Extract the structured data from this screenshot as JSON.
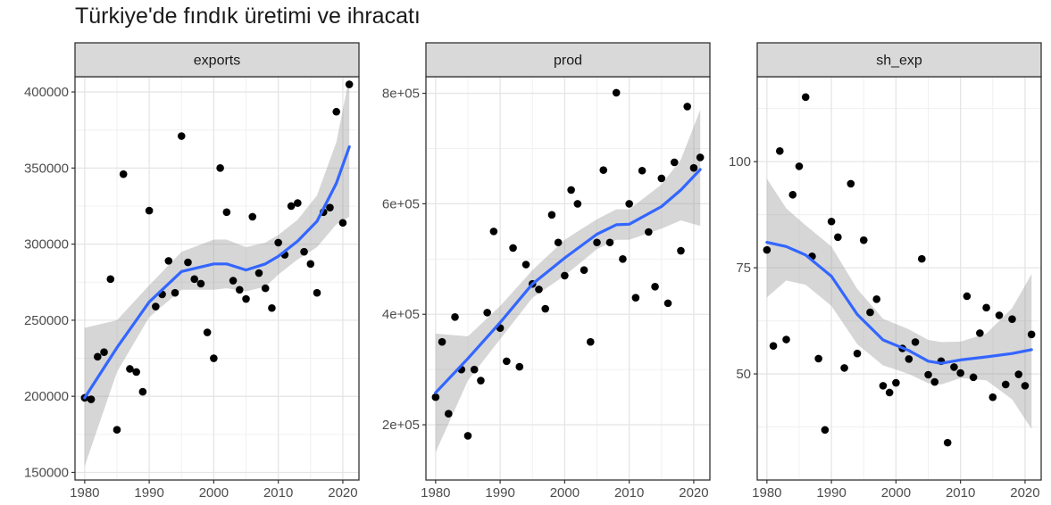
{
  "title": "Türkiye'de fındık üretimi ve ihracatı",
  "chart_data": [
    {
      "type": "scatter",
      "panel": "exports",
      "xlim": [
        1978.5,
        2022.5
      ],
      "ylim": [
        145000,
        410000
      ],
      "x_ticks": [
        1980,
        1990,
        2000,
        2010,
        2020
      ],
      "x_tick_labels": [
        "1980",
        "1990",
        "2000",
        "2010",
        "2020"
      ],
      "y_ticks": [
        150000,
        200000,
        250000,
        300000,
        350000,
        400000
      ],
      "y_tick_labels": [
        "150000",
        "200000",
        "250000",
        "300000",
        "350000",
        "400000"
      ],
      "points": [
        [
          1980,
          199000
        ],
        [
          1981,
          198000
        ],
        [
          1982,
          226000
        ],
        [
          1983,
          229000
        ],
        [
          1984,
          277000
        ],
        [
          1985,
          178000
        ],
        [
          1986,
          346000
        ],
        [
          1987,
          218000
        ],
        [
          1988,
          216000
        ],
        [
          1989,
          203000
        ],
        [
          1990,
          322000
        ],
        [
          1991,
          259000
        ],
        [
          1992,
          267000
        ],
        [
          1993,
          289000
        ],
        [
          1994,
          268000
        ],
        [
          1995,
          371000
        ],
        [
          1996,
          288000
        ],
        [
          1997,
          277000
        ],
        [
          1998,
          274000
        ],
        [
          1999,
          242000
        ],
        [
          2000,
          225000
        ],
        [
          2001,
          350000
        ],
        [
          2002,
          321000
        ],
        [
          2003,
          276000
        ],
        [
          2004,
          270000
        ],
        [
          2005,
          264000
        ],
        [
          2006,
          318000
        ],
        [
          2007,
          281000
        ],
        [
          2008,
          271000
        ],
        [
          2009,
          258000
        ],
        [
          2010,
          301000
        ],
        [
          2011,
          293000
        ],
        [
          2012,
          325000
        ],
        [
          2013,
          327000
        ],
        [
          2014,
          295000
        ],
        [
          2015,
          287000
        ],
        [
          2016,
          268000
        ],
        [
          2017,
          321000
        ],
        [
          2018,
          324000
        ],
        [
          2019,
          387000
        ],
        [
          2020,
          314000
        ],
        [
          2021,
          405000
        ]
      ],
      "smooth": {
        "x": [
          1980,
          1985,
          1990,
          1995,
          2000,
          2002,
          2005,
          2008,
          2010,
          2013,
          2016,
          2019,
          2021
        ],
        "y": [
          199000,
          232000,
          262000,
          282000,
          287000,
          287000,
          283000,
          287000,
          292000,
          302000,
          315000,
          340000,
          364000
        ],
        "lower": [
          154000,
          216000,
          252000,
          270000,
          270000,
          271000,
          269000,
          272000,
          280000,
          290000,
          298000,
          313000,
          318000
        ],
        "upper": [
          245000,
          250000,
          273000,
          295000,
          303000,
          303000,
          298000,
          301000,
          306000,
          316000,
          332000,
          367000,
          410000
        ]
      }
    },
    {
      "type": "scatter",
      "panel": "prod",
      "xlim": [
        1978.5,
        2022.5
      ],
      "ylim": [
        100000,
        830000
      ],
      "x_ticks": [
        1980,
        1990,
        2000,
        2010,
        2020
      ],
      "x_tick_labels": [
        "1980",
        "1990",
        "2000",
        "2010",
        "2020"
      ],
      "y_ticks": [
        200000,
        400000,
        600000,
        800000
      ],
      "y_tick_labels": [
        "2e+05",
        "4e+05",
        "6e+05",
        "8e+05"
      ],
      "points": [
        [
          1980,
          250000
        ],
        [
          1981,
          350000
        ],
        [
          1982,
          220000
        ],
        [
          1983,
          395000
        ],
        [
          1984,
          300000
        ],
        [
          1985,
          180000
        ],
        [
          1986,
          300000
        ],
        [
          1987,
          280000
        ],
        [
          1988,
          403000
        ],
        [
          1989,
          550000
        ],
        [
          1990,
          375000
        ],
        [
          1991,
          315000
        ],
        [
          1992,
          520000
        ],
        [
          1993,
          305000
        ],
        [
          1994,
          490000
        ],
        [
          1995,
          455000
        ],
        [
          1996,
          445000
        ],
        [
          1997,
          410000
        ],
        [
          1998,
          580000
        ],
        [
          1999,
          530000
        ],
        [
          2000,
          470000
        ],
        [
          2001,
          625000
        ],
        [
          2002,
          600000
        ],
        [
          2003,
          480000
        ],
        [
          2004,
          350000
        ],
        [
          2005,
          530000
        ],
        [
          2006,
          661000
        ],
        [
          2007,
          530000
        ],
        [
          2008,
          801000
        ],
        [
          2009,
          500000
        ],
        [
          2010,
          600000
        ],
        [
          2011,
          430000
        ],
        [
          2012,
          660000
        ],
        [
          2013,
          549000
        ],
        [
          2014,
          450000
        ],
        [
          2015,
          646000
        ],
        [
          2016,
          420000
        ],
        [
          2017,
          675000
        ],
        [
          2018,
          515000
        ],
        [
          2019,
          776000
        ],
        [
          2020,
          665000
        ],
        [
          2021,
          684000
        ]
      ],
      "smooth": {
        "x": [
          1980,
          1985,
          1990,
          1995,
          2000,
          2005,
          2008,
          2010,
          2015,
          2018,
          2021
        ],
        "y": [
          258000,
          320000,
          385000,
          455000,
          502000,
          545000,
          562000,
          563000,
          595000,
          625000,
          662000
        ],
        "lower": [
          150000,
          280000,
          355000,
          430000,
          470000,
          518000,
          535000,
          535000,
          555000,
          570000,
          560000
        ],
        "upper": [
          365000,
          360000,
          415000,
          480000,
          535000,
          572000,
          590000,
          590000,
          635000,
          680000,
          770000
        ]
      }
    },
    {
      "type": "scatter",
      "panel": "sh_exp",
      "xlim": [
        1978.5,
        2022.5
      ],
      "ylim": [
        25,
        120
      ],
      "x_ticks": [
        1980,
        1990,
        2000,
        2010,
        2020
      ],
      "x_tick_labels": [
        "1980",
        "1990",
        "2000",
        "2010",
        "2020"
      ],
      "y_ticks": [
        50,
        75,
        100
      ],
      "y_tick_labels": [
        "50",
        "75",
        "100"
      ],
      "points": [
        [
          1980,
          79.2
        ],
        [
          1981,
          56.6
        ],
        [
          1982,
          102.5
        ],
        [
          1983,
          58.1
        ],
        [
          1984,
          92.2
        ],
        [
          1985,
          98.9
        ],
        [
          1986,
          115.2
        ],
        [
          1987,
          77.7
        ],
        [
          1988,
          53.6
        ],
        [
          1989,
          36.8
        ],
        [
          1990,
          85.9
        ],
        [
          1991,
          82.2
        ],
        [
          1992,
          51.4
        ],
        [
          1993,
          94.8
        ],
        [
          1994,
          54.8
        ],
        [
          1995,
          81.5
        ],
        [
          1996,
          64.5
        ],
        [
          1997,
          67.6
        ],
        [
          1998,
          47.2
        ],
        [
          1999,
          45.6
        ],
        [
          2000,
          47.9
        ],
        [
          2001,
          56.0
        ],
        [
          2002,
          53.5
        ],
        [
          2003,
          57.5
        ],
        [
          2004,
          77.1
        ],
        [
          2005,
          49.8
        ],
        [
          2006,
          48.1
        ],
        [
          2007,
          53.0
        ],
        [
          2008,
          33.8
        ],
        [
          2009,
          51.6
        ],
        [
          2010,
          50.2
        ],
        [
          2011,
          68.3
        ],
        [
          2012,
          49.2
        ],
        [
          2013,
          59.6
        ],
        [
          2014,
          65.6
        ],
        [
          2015,
          44.5
        ],
        [
          2016,
          63.8
        ],
        [
          2017,
          47.5
        ],
        [
          2018,
          62.9
        ],
        [
          2019,
          49.9
        ],
        [
          2020,
          47.2
        ],
        [
          2021,
          59.3
        ]
      ],
      "smooth": {
        "x": [
          1980,
          1983,
          1986,
          1990,
          1994,
          1998,
          2002,
          2005,
          2007,
          2010,
          2014,
          2018,
          2021
        ],
        "y": [
          81,
          80,
          78,
          73,
          64,
          58,
          55.5,
          53,
          52.5,
          53.3,
          54,
          54.8,
          55.7
        ],
        "lower": [
          68,
          72,
          71,
          66,
          57,
          52,
          50,
          47.8,
          47.5,
          49,
          48.5,
          44,
          37
        ],
        "upper": [
          96,
          89,
          85,
          80,
          70,
          63,
          60.5,
          58,
          57.5,
          57.6,
          59.5,
          65.5,
          73.5
        ]
      }
    }
  ]
}
